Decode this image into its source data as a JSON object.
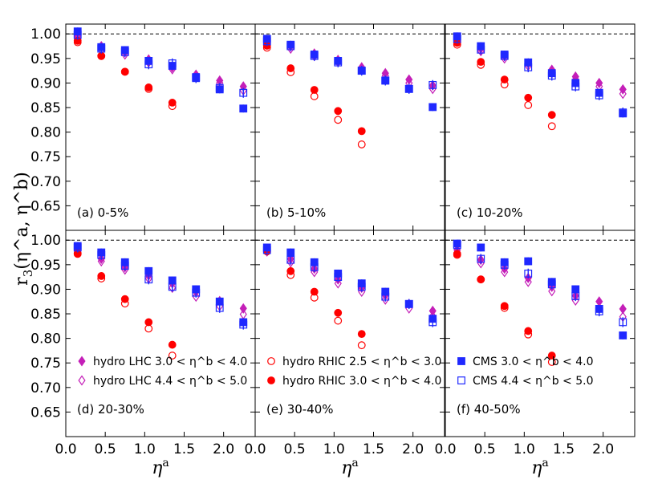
{
  "chart_data": {
    "type": "scatter",
    "title": "",
    "xlabel": "η^a",
    "ylabel": "r3(η^a, η^b)",
    "ylabel_base": "r",
    "ylabel_sub": "3",
    "ylabel_args": "(η^a, η^b)",
    "xlabel_base": "η",
    "xlabel_sup": "a",
    "xlim": [
      0.0,
      2.4
    ],
    "ylim": [
      0.6,
      1.02
    ],
    "xticks": [
      "0.0",
      "0.5",
      "1.0",
      "1.5",
      "2.0"
    ],
    "yticks": [
      "0.65",
      "0.70",
      "0.75",
      "0.80",
      "0.85",
      "0.90",
      "0.95",
      "1.00"
    ],
    "x": [
      0.15,
      0.45,
      0.75,
      1.05,
      1.35,
      1.65,
      1.95,
      2.25
    ],
    "reference_line": 1.0,
    "colors": {
      "hydro_lhc": "#c41fb8",
      "hydro_rhic": "#ff0000",
      "cms": "#1f28ff"
    },
    "legend": [
      {
        "label": "hydro LHC",
        "range": "3.0 < η^b < 4.0",
        "marker": "diamond-filled"
      },
      {
        "label": "hydro LHC",
        "range": "4.4 < η^b < 5.0",
        "marker": "diamond-open"
      },
      {
        "label": "hydro RHIC",
        "range": "2.5 < η^b < 3.0",
        "marker": "circle-open"
      },
      {
        "label": "hydro RHIC",
        "range": "3.0 < η^b < 4.0",
        "marker": "circle-filled"
      },
      {
        "label": "CMS",
        "range": "3.0 < η^b < 4.0",
        "marker": "square-filled"
      },
      {
        "label": "CMS",
        "range": "4.4 < η^b < 5.0",
        "marker": "square-open"
      }
    ],
    "panels": [
      {
        "label": "(a) 0-5%",
        "series": [
          {
            "name": "hydro LHC 3.0<ηb<4.0",
            "values": [
              0.995,
              0.975,
              0.963,
              0.948,
              0.932,
              0.917,
              0.905,
              0.893
            ]
          },
          {
            "name": "hydro LHC 4.4<ηb<5.0",
            "values": [
              0.99,
              0.968,
              0.958,
              0.942,
              0.928,
              0.912,
              0.9,
              0.885
            ]
          },
          {
            "name": "hydro RHIC 2.5<ηb<3.0",
            "values": [
              0.983,
              0.955,
              0.923,
              0.888,
              0.853
            ]
          },
          {
            "name": "hydro RHIC 3.0<ηb<4.0",
            "values": [
              0.986,
              0.955,
              0.923,
              0.891,
              0.86
            ]
          },
          {
            "name": "CMS 3.0<ηb<4.0",
            "values": [
              1.005,
              0.973,
              0.967,
              0.945,
              0.935,
              0.912,
              0.887,
              0.848
            ]
          },
          {
            "name": "CMS 4.4<ηb<5.0",
            "values": [
              0.998,
              0.97,
              0.963,
              0.938,
              0.94,
              0.91,
              0.89,
              0.88
            ]
          }
        ]
      },
      {
        "label": "(b) 5-10%",
        "series": [
          {
            "name": "hydro LHC 3.0<ηb<4.0",
            "values": [
              0.988,
              0.975,
              0.96,
              0.947,
              0.932,
              0.92,
              0.907,
              0.895
            ]
          },
          {
            "name": "hydro LHC 4.4<ηb<5.0",
            "values": [
              0.983,
              0.97,
              0.955,
              0.943,
              0.928,
              0.915,
              0.9,
              0.888
            ]
          },
          {
            "name": "hydro RHIC 2.5<ηb<3.0",
            "values": [
              0.972,
              0.922,
              0.873,
              0.825,
              0.775
            ]
          },
          {
            "name": "hydro RHIC 3.0<ηb<4.0",
            "values": [
              0.976,
              0.93,
              0.886,
              0.843,
              0.802
            ]
          },
          {
            "name": "CMS 3.0<ηb<4.0",
            "values": [
              0.99,
              0.978,
              0.958,
              0.945,
              0.925,
              0.905,
              0.888,
              0.851
            ]
          },
          {
            "name": "CMS 4.4<ηb<5.0",
            "values": [
              0.985,
              0.975,
              0.955,
              0.942,
              0.925,
              0.905,
              0.888,
              0.896
            ]
          }
        ]
      },
      {
        "label": "(c) 10-20%",
        "series": [
          {
            "name": "hydro LHC 3.0<ηb<4.0",
            "values": [
              0.99,
              0.97,
              0.955,
              0.94,
              0.927,
              0.913,
              0.9,
              0.887
            ]
          },
          {
            "name": "hydro LHC 4.4<ηb<5.0",
            "values": [
              0.985,
              0.965,
              0.95,
              0.935,
              0.92,
              0.907,
              0.893,
              0.878
            ]
          },
          {
            "name": "hydro RHIC 2.5<ηb<3.0",
            "values": [
              0.978,
              0.937,
              0.897,
              0.855,
              0.812
            ]
          },
          {
            "name": "hydro RHIC 3.0<ηb<4.0",
            "values": [
              0.982,
              0.943,
              0.907,
              0.87,
              0.835
            ]
          },
          {
            "name": "CMS 3.0<ηb<4.0",
            "values": [
              0.995,
              0.975,
              0.958,
              0.942,
              0.92,
              0.9,
              0.88,
              0.838
            ]
          },
          {
            "name": "CMS 4.4<ηb<5.0",
            "values": [
              0.99,
              0.968,
              0.955,
              0.932,
              0.915,
              0.893,
              0.875,
              0.84
            ]
          }
        ]
      },
      {
        "label": "(d) 20-30%",
        "series": [
          {
            "name": "hydro LHC 3.0<ηb<4.0",
            "values": [
              0.983,
              0.962,
              0.945,
              0.928,
              0.912,
              0.895,
              0.876,
              0.861
            ]
          },
          {
            "name": "hydro LHC 4.4<ηb<5.0",
            "values": [
              0.978,
              0.957,
              0.94,
              0.922,
              0.903,
              0.885,
              0.866,
              0.849
            ]
          },
          {
            "name": "hydro RHIC 2.5<ηb<3.0",
            "values": [
              0.972,
              0.922,
              0.871,
              0.82,
              0.765
            ]
          },
          {
            "name": "hydro RHIC 3.0<ηb<4.0",
            "values": [
              0.973,
              0.927,
              0.88,
              0.833,
              0.787
            ]
          },
          {
            "name": "CMS 3.0<ηb<4.0",
            "values": [
              0.988,
              0.975,
              0.955,
              0.937,
              0.918,
              0.9,
              0.875,
              0.833
            ]
          },
          {
            "name": "CMS 4.4<ηb<5.0",
            "values": [
              0.985,
              0.97,
              0.948,
              0.92,
              0.905,
              0.893,
              0.862,
              0.828
            ]
          }
        ]
      },
      {
        "label": "(e) 30-40%",
        "series": [
          {
            "name": "hydro LHC 3.0<ηb<4.0",
            "values": [
              0.982,
              0.962,
              0.942,
              0.92,
              0.903,
              0.888,
              0.87,
              0.856
            ]
          },
          {
            "name": "hydro LHC 4.4<ηb<5.0",
            "values": [
              0.977,
              0.955,
              0.935,
              0.912,
              0.895,
              0.879,
              0.861,
              0.845
            ]
          },
          {
            "name": "hydro RHIC 2.5<ηb<3.0",
            "values": [
              0.977,
              0.929,
              0.883,
              0.836,
              0.786
            ]
          },
          {
            "name": "hydro RHIC 3.0<ηb<4.0",
            "values": [
              0.98,
              0.937,
              0.895,
              0.852,
              0.809
            ]
          },
          {
            "name": "CMS 3.0<ηb<4.0",
            "values": [
              0.985,
              0.975,
              0.955,
              0.932,
              0.912,
              0.895,
              0.87,
              0.84
            ]
          },
          {
            "name": "CMS 4.4<ηb<5.0",
            "values": [
              0.98,
              0.96,
              0.945,
              0.925,
              0.905,
              0.885,
              0.87,
              0.833
            ]
          }
        ]
      },
      {
        "label": "(f) 40-50%",
        "series": [
          {
            "name": "hydro LHC 3.0<ηb<4.0",
            "values": [
              0.98,
              0.96,
              0.942,
              0.923,
              0.905,
              0.887,
              0.875,
              0.86
            ]
          },
          {
            "name": "hydro LHC 4.4<ηb<5.0",
            "values": [
              0.975,
              0.953,
              0.935,
              0.915,
              0.896,
              0.877,
              0.86,
              0.844
            ]
          },
          {
            "name": "hydro RHIC 2.5<ηb<3.0",
            "values": [
              0.97,
              0.92,
              0.862,
              0.808,
              0.752
            ]
          },
          {
            "name": "hydro RHIC 3.0<ηb<4.0",
            "values": [
              0.972,
              0.92,
              0.866,
              0.815,
              0.765
            ]
          },
          {
            "name": "CMS 3.0<ηb<4.0",
            "values": [
              0.993,
              0.985,
              0.955,
              0.957,
              0.915,
              0.9,
              0.86,
              0.806
            ]
          },
          {
            "name": "CMS 4.4<ηb<5.0",
            "values": [
              0.99,
              0.962,
              0.95,
              0.932,
              0.91,
              0.886,
              0.855,
              0.833
            ]
          }
        ]
      }
    ]
  }
}
